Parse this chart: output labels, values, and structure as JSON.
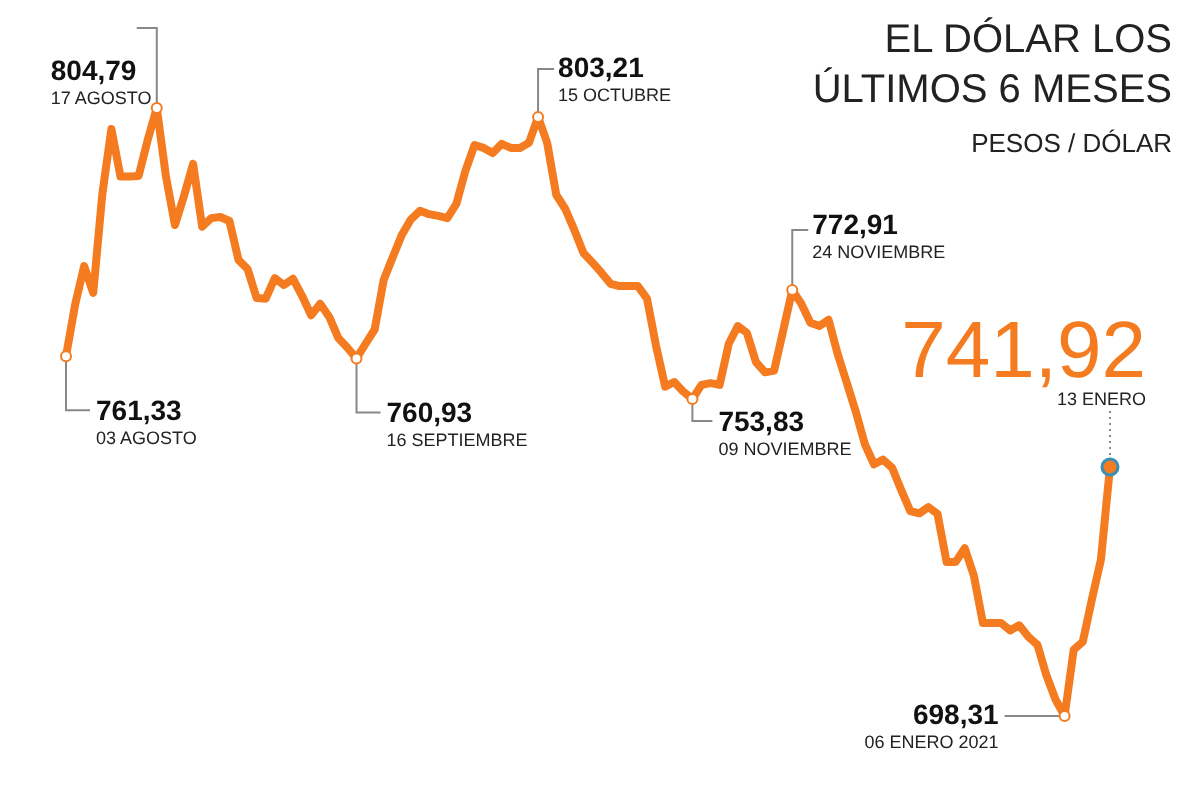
{
  "chart_data": {
    "type": "line",
    "title": "EL DÓLAR LOS ÚLTIMOS 6 MESES",
    "subtitle": "PESOS / DÓLAR",
    "categories": [
      null,
      null,
      null,
      null,
      null,
      null,
      null,
      null,
      null,
      null,
      null,
      null,
      null,
      null,
      null,
      null,
      null,
      null,
      null,
      null,
      null,
      null,
      null,
      null,
      null,
      null,
      null,
      null,
      null,
      null,
      null,
      null,
      null,
      null,
      null,
      null,
      null,
      null,
      null,
      null,
      null,
      null,
      null,
      null,
      null,
      null,
      null,
      null,
      null,
      null,
      null,
      null,
      null,
      null,
      null,
      null,
      null,
      null,
      null,
      null,
      null,
      null,
      null,
      null,
      null,
      null,
      null,
      null,
      null,
      null,
      null,
      null,
      null,
      null,
      null,
      null,
      null,
      null,
      null,
      null,
      null,
      null,
      null,
      null,
      null,
      null,
      null,
      null,
      null,
      null,
      null,
      null,
      null,
      null,
      null,
      null,
      null,
      null,
      null,
      null,
      null,
      null,
      null,
      null,
      null,
      null,
      null,
      null,
      null,
      null,
      null,
      null,
      null,
      null,
      null,
      null
    ],
    "series": [
      {
        "color": "#f47b20",
        "values": [
          761.33,
          770.3,
          777.1,
          772.4,
          789.7,
          801.1,
          792.8,
          792.8,
          792.9,
          799.2,
          804.79,
          792.9,
          784.3,
          789.4,
          795.0,
          784.0,
          785.5,
          785.7,
          785.0,
          778.2,
          776.6,
          771.5,
          771.4,
          775.0,
          773.8,
          774.9,
          771.9,
          768.5,
          770.5,
          768.2,
          764.5,
          762.8,
          760.93,
          763.5,
          766.0,
          774.7,
          778.7,
          782.6,
          785.3,
          786.8,
          786.2,
          785.9,
          785.5,
          788.0,
          793.8,
          798.3,
          797.8,
          796.9,
          798.5,
          797.8,
          797.8,
          798.7,
          803.21,
          798.7,
          789.6,
          787.1,
          783.4,
          779.4,
          777.7,
          775.9,
          774.0,
          773.6,
          773.6,
          773.6,
          771.4,
          763.1,
          756.0,
          756.8,
          755.1,
          753.83,
          756.3,
          756.6,
          756.3,
          763.5,
          766.6,
          765.4,
          760.3,
          758.5,
          758.8,
          765.8,
          772.91,
          770.5,
          767.2,
          766.6,
          767.7,
          761.7,
          756.7,
          751.6,
          745.9,
          742.4,
          743.2,
          741.8,
          737.9,
          734.2,
          733.8,
          734.9,
          733.7,
          725.3,
          725.3,
          727.7,
          722.9,
          714.6,
          714.6,
          714.6,
          713.3,
          714.2,
          712.2,
          710.8,
          705.4,
          701.2,
          698.31,
          709.9,
          711.3,
          718.7,
          725.7,
          741.92
        ],
        "value_labels": [
          "761,33",
          null,
          null,
          null,
          null,
          null,
          null,
          null,
          null,
          null,
          "804,79",
          null,
          null,
          null,
          null,
          null,
          null,
          null,
          null,
          null,
          null,
          null,
          null,
          null,
          null,
          null,
          null,
          null,
          null,
          null,
          null,
          null,
          "760,93",
          null,
          null,
          null,
          null,
          null,
          null,
          null,
          null,
          null,
          null,
          null,
          null,
          null,
          null,
          null,
          null,
          null,
          null,
          null,
          "803,21",
          null,
          null,
          null,
          null,
          null,
          null,
          null,
          null,
          null,
          null,
          null,
          null,
          null,
          null,
          null,
          null,
          "753,83",
          null,
          null,
          null,
          null,
          null,
          null,
          null,
          null,
          null,
          null,
          "772,91",
          null,
          null,
          null,
          null,
          null,
          null,
          null,
          null,
          null,
          null,
          null,
          null,
          null,
          null,
          null,
          null,
          null,
          null,
          null,
          null,
          null,
          null,
          null,
          null,
          null,
          null,
          null,
          null,
          null,
          "698,31",
          null,
          null,
          null,
          null,
          "741,92"
        ]
      }
    ],
    "annotations": [
      "03 AGOSTO",
      "17 AGOSTO",
      "16 SEPTIEMBRE",
      "15 OCTUBRE",
      "09 NOVIEMBRE",
      "24 NOVIEMBRE",
      "06 ENERO 2021",
      "13 ENERO"
    ],
    "tick_labels": false,
    "legend": false,
    "marker": "none",
    "line_style": "solid"
  }
}
